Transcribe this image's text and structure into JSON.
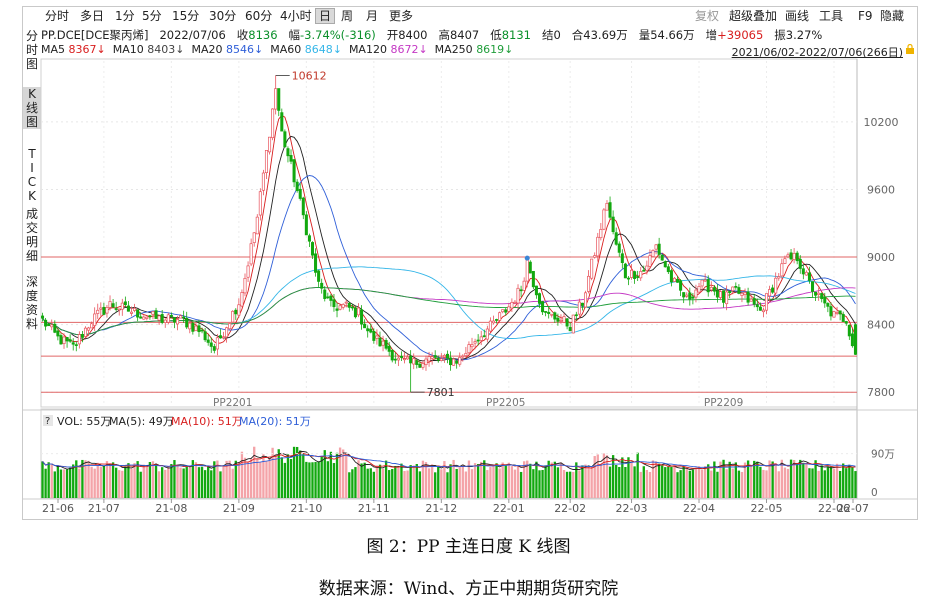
{
  "toolbar": {
    "periods": [
      "分时",
      "多日",
      "1分",
      "5分",
      "15分",
      "30分",
      "60分",
      "4小时",
      "日",
      "周",
      "月",
      "更多"
    ],
    "active_period": "日",
    "right_items": [
      "复权",
      "超级叠加",
      "画线",
      "工具",
      "F9",
      "隐藏"
    ]
  },
  "sidebar": {
    "items": [
      "分时图",
      "K线图",
      "TICK",
      "成交明细",
      "深度资料"
    ],
    "selected": "K线图"
  },
  "info": {
    "symbol": "PP.DCE[DCE聚丙烯]",
    "date": "2022/07/06",
    "close_label": "收",
    "close": "8136",
    "range_label": "幅",
    "range": "-3.74%(-316)",
    "open_label": "开",
    "open": "8400",
    "high_label": "高",
    "high": "8407",
    "low_label": "低",
    "low": "8131",
    "settle_label": "结",
    "settle": "0",
    "oi_label": "合",
    "oi": "43.69万",
    "vol_label": "量",
    "vol": "54.66万",
    "incr_label": "增",
    "incr": "+39065",
    "amp_label": "振",
    "amp": "3.27%"
  },
  "ma": {
    "ma5_label": "MA5",
    "ma5": "8367↓",
    "ma10_label": "MA10",
    "ma10": "8403↓",
    "ma20_label": "MA20",
    "ma20": "8546↓",
    "ma60_label": "MA60",
    "ma60": "8648↓",
    "ma120_label": "MA120",
    "ma120": "8672↓",
    "ma250_label": "MA250",
    "ma250": "8619↓"
  },
  "date_range": "2021/06/02-2022/07/06(266日)",
  "volume_legend": {
    "q": "?",
    "vol": "VOL: 55万",
    "ma5": "MA(5): 49万",
    "ma10": "MA(10): 51万",
    "ma20": "MA(20): 51万"
  },
  "colors": {
    "up": "#e8525b",
    "down": "#12a80f",
    "ma5": "#d81e1e",
    "ma10": "#222222",
    "ma20": "#2f5fd8",
    "ma60": "#35b6e8",
    "ma120": "#c438c4",
    "ma250": "#1f9d3a",
    "hline": "#e06666"
  },
  "chart_data": {
    "type": "candlestick",
    "y_ticks": [
      10200,
      9600,
      9000,
      8400,
      7800
    ],
    "ylim": [
      7740,
      10740
    ],
    "horizontal_lines": [
      9000,
      8420,
      8120,
      7800
    ],
    "max_label": "10612",
    "min_label": "7801",
    "max_value": 10612,
    "min_value": 7801,
    "contract_labels": [
      "PP2201",
      "PP2205",
      "PP2209"
    ],
    "x_ticks": [
      "21-06",
      "21-07",
      "21-08",
      "21-09",
      "21-10",
      "21-11",
      "21-12",
      "22-01",
      "22-02",
      "22-03",
      "22-04",
      "22-05",
      "22-06",
      "22-07"
    ],
    "anchors": [
      [
        0,
        8440
      ],
      [
        5,
        8280
      ],
      [
        10,
        8200
      ],
      [
        16,
        8440
      ],
      [
        22,
        8580
      ],
      [
        30,
        8510
      ],
      [
        38,
        8450
      ],
      [
        46,
        8440
      ],
      [
        52,
        8330
      ],
      [
        56,
        8180
      ],
      [
        60,
        8400
      ],
      [
        64,
        8600
      ],
      [
        66,
        8820
      ],
      [
        70,
        9350
      ],
      [
        76,
        10500
      ],
      [
        78,
        10100
      ],
      [
        82,
        9700
      ],
      [
        86,
        9250
      ],
      [
        90,
        8750
      ],
      [
        94,
        8560
      ],
      [
        99,
        8560
      ],
      [
        103,
        8500
      ],
      [
        107,
        8300
      ],
      [
        112,
        8200
      ],
      [
        116,
        8080
      ],
      [
        120,
        8050
      ],
      [
        126,
        8100
      ],
      [
        130,
        8080
      ],
      [
        136,
        8090
      ],
      [
        140,
        8240
      ],
      [
        146,
        8380
      ],
      [
        152,
        8560
      ],
      [
        156,
        8720
      ],
      [
        158,
        8960
      ],
      [
        160,
        8780
      ],
      [
        164,
        8480
      ],
      [
        168,
        8460
      ],
      [
        172,
        8390
      ],
      [
        176,
        8600
      ],
      [
        181,
        9150
      ],
      [
        184,
        9500
      ],
      [
        186,
        9200
      ],
      [
        190,
        8840
      ],
      [
        196,
        8880
      ],
      [
        200,
        9100
      ],
      [
        205,
        8800
      ],
      [
        210,
        8620
      ],
      [
        214,
        8750
      ],
      [
        218,
        8740
      ],
      [
        222,
        8620
      ],
      [
        226,
        8700
      ],
      [
        230,
        8620
      ],
      [
        234,
        8520
      ],
      [
        238,
        8740
      ],
      [
        242,
        8960
      ],
      [
        246,
        9000
      ],
      [
        250,
        8760
      ],
      [
        254,
        8600
      ],
      [
        258,
        8480
      ],
      [
        262,
        8450
      ],
      [
        265,
        8136
      ]
    ],
    "volume_axis_label": "90万",
    "volume_axis_zero": "0",
    "volume_max": 1400000
  },
  "caption": {
    "title": "图 2：PP 主连日度 K 线图",
    "source": "数据来源：Wind、方正中期期货研究院"
  }
}
